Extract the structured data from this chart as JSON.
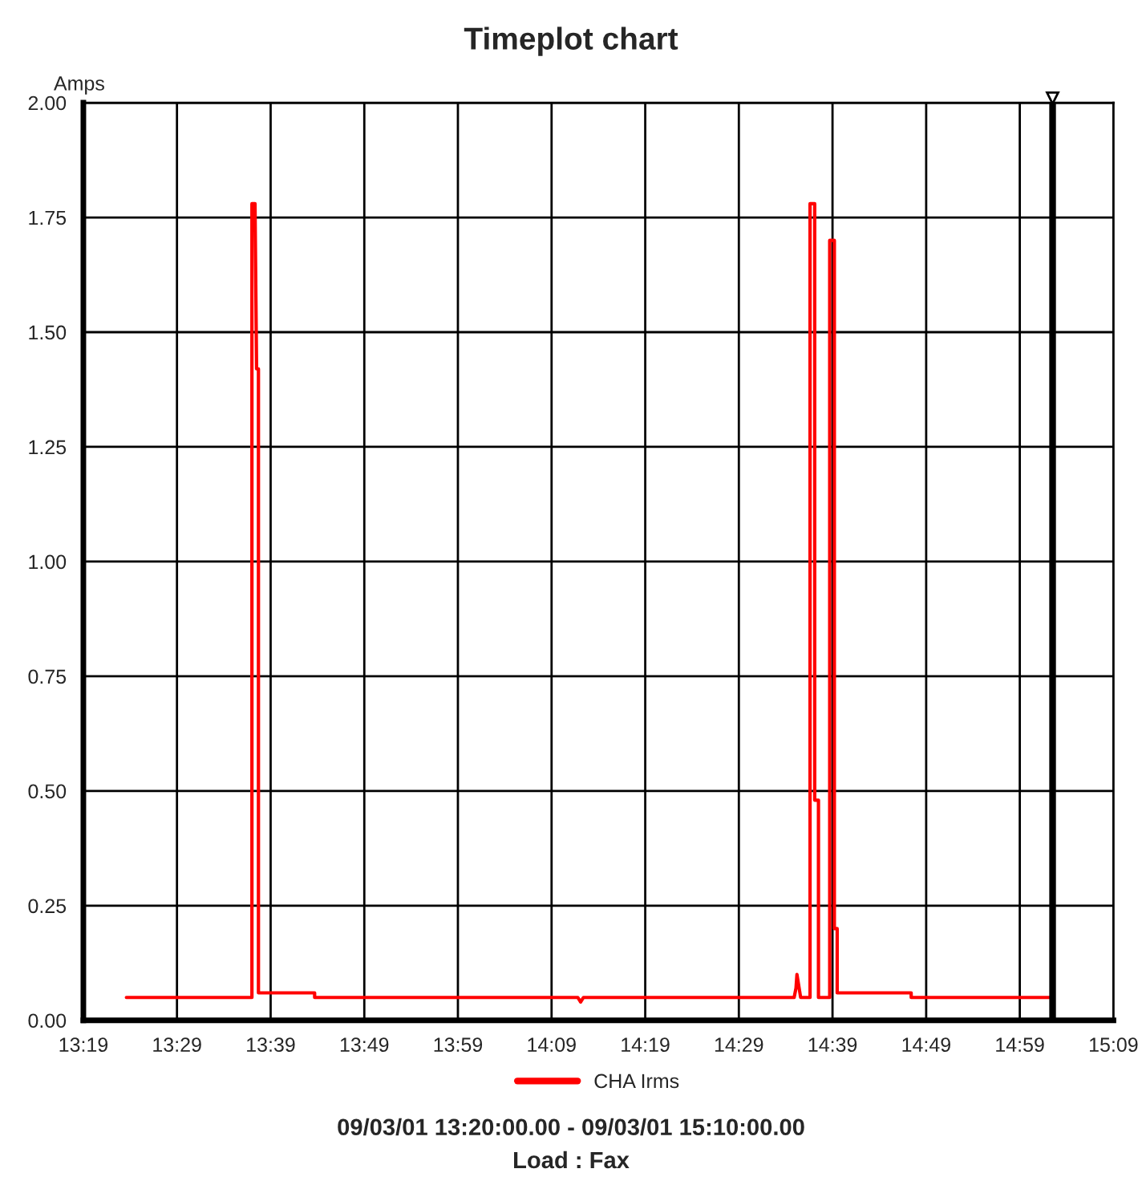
{
  "chart_data": {
    "type": "line",
    "title": "Timeplot chart",
    "ylabel": "Amps",
    "x": [
      13.3933,
      13.6167,
      13.6167,
      13.6222,
      13.625,
      13.6283,
      13.6283,
      13.7283,
      13.7283,
      14.1967,
      14.2017,
      14.2067,
      14.5817,
      14.585,
      14.5867,
      14.5933,
      14.61,
      14.61,
      14.6183,
      14.6183,
      14.625,
      14.625,
      14.645,
      14.645,
      14.6533,
      14.6533,
      14.6583,
      14.6583,
      14.79,
      14.79,
      15.0367
    ],
    "series": [
      {
        "name": "CHA Irms",
        "color": "#ff0000",
        "values": [
          0.05,
          0.05,
          1.78,
          1.78,
          1.42,
          1.42,
          0.06,
          0.06,
          0.05,
          0.05,
          0.04,
          0.05,
          0.05,
          0.07,
          0.1,
          0.05,
          0.05,
          1.78,
          1.78,
          0.48,
          0.48,
          0.05,
          0.05,
          1.7,
          1.7,
          0.2,
          0.2,
          0.06,
          0.06,
          0.05,
          0.05
        ]
      }
    ],
    "xlim": [
      13.3167,
      15.15
    ],
    "xticks": [
      {
        "value": 13.3167,
        "label": "13:19"
      },
      {
        "value": 13.4833,
        "label": "13:29"
      },
      {
        "value": 13.65,
        "label": "13:39"
      },
      {
        "value": 13.8167,
        "label": "13:49"
      },
      {
        "value": 13.9833,
        "label": "13:59"
      },
      {
        "value": 14.15,
        "label": "14:09"
      },
      {
        "value": 14.3167,
        "label": "14:19"
      },
      {
        "value": 14.4833,
        "label": "14:29"
      },
      {
        "value": 14.65,
        "label": "14:39"
      },
      {
        "value": 14.8167,
        "label": "14:49"
      },
      {
        "value": 14.9833,
        "label": "14:59"
      },
      {
        "value": 15.15,
        "label": "15:09"
      }
    ],
    "ylim": [
      0,
      2
    ],
    "yticks": [
      {
        "value": 0,
        "label": "0.00"
      },
      {
        "value": 0.25,
        "label": "0.25"
      },
      {
        "value": 0.5,
        "label": "0.50"
      },
      {
        "value": 0.75,
        "label": "0.75"
      },
      {
        "value": 1,
        "label": "1.00"
      },
      {
        "value": 1.25,
        "label": "1.25"
      },
      {
        "value": 1.5,
        "label": "1.50"
      },
      {
        "value": 1.75,
        "label": "1.75"
      },
      {
        "value": 2,
        "label": "2.00"
      }
    ],
    "ref_lines": [
      {
        "axis": "x",
        "value": 15.0417,
        "label": null,
        "color": "#000000"
      }
    ],
    "grid": true,
    "legend": "bottom",
    "line_style": "solid",
    "marker": "none",
    "annotations": [
      "09/03/01 13:20:00.00 - 09/03/01 15:10:00.00",
      "Load : Fax"
    ]
  }
}
